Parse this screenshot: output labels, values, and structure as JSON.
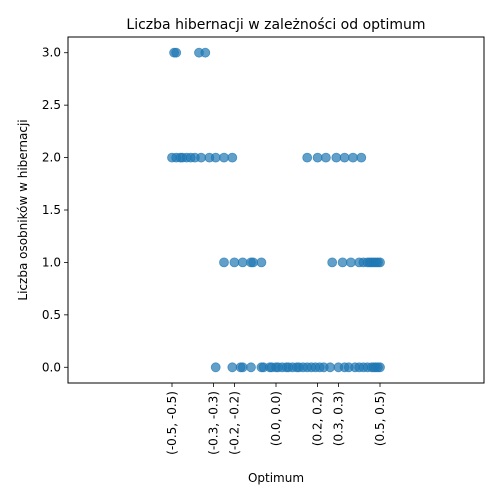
{
  "chart_data": {
    "type": "scatter",
    "title": "Liczba hibernacji w zależności od optimum",
    "xlabel": "Optimum",
    "ylabel": "Liczba osobników w hibernacji",
    "x_categories": [
      "(-0.5, -0.5)",
      "(-0.3, -0.3)",
      "(-0.2, -0.2)",
      "(0.0, 0.0)",
      "(0.2, 0.2)",
      "(0.3, 0.3)",
      "(0.5, 0.5)"
    ],
    "xlim": [
      -1.0,
      1.0
    ],
    "ylim": [
      -0.15,
      3.15
    ],
    "yticks": [
      0.0,
      0.5,
      1.0,
      1.5,
      2.0,
      2.5,
      3.0
    ],
    "ytick_labels": [
      "0.0",
      "0.5",
      "1.0",
      "1.5",
      "2.0",
      "2.5",
      "3.0"
    ],
    "xticks": [
      -0.5,
      -0.3,
      -0.2,
      0.0,
      0.2,
      0.3,
      0.5
    ],
    "grid": false,
    "point_color": "#1f77b4",
    "point_opacity": 0.7,
    "points": [
      {
        "x": -0.49,
        "y": 3
      },
      {
        "x": -0.48,
        "y": 3
      },
      {
        "x": -0.37,
        "y": 3
      },
      {
        "x": -0.34,
        "y": 3
      },
      {
        "x": -0.5,
        "y": 2
      },
      {
        "x": -0.48,
        "y": 2
      },
      {
        "x": -0.46,
        "y": 2
      },
      {
        "x": -0.45,
        "y": 2
      },
      {
        "x": -0.43,
        "y": 2
      },
      {
        "x": -0.41,
        "y": 2
      },
      {
        "x": -0.39,
        "y": 2
      },
      {
        "x": -0.36,
        "y": 2
      },
      {
        "x": -0.32,
        "y": 2
      },
      {
        "x": -0.29,
        "y": 2
      },
      {
        "x": -0.25,
        "y": 2
      },
      {
        "x": -0.21,
        "y": 2
      },
      {
        "x": 0.15,
        "y": 2
      },
      {
        "x": 0.2,
        "y": 2
      },
      {
        "x": 0.24,
        "y": 2
      },
      {
        "x": 0.29,
        "y": 2
      },
      {
        "x": 0.33,
        "y": 2
      },
      {
        "x": 0.37,
        "y": 2
      },
      {
        "x": 0.41,
        "y": 2
      },
      {
        "x": -0.25,
        "y": 1
      },
      {
        "x": -0.2,
        "y": 1
      },
      {
        "x": -0.16,
        "y": 1
      },
      {
        "x": -0.12,
        "y": 1
      },
      {
        "x": -0.11,
        "y": 1
      },
      {
        "x": -0.07,
        "y": 1
      },
      {
        "x": 0.27,
        "y": 1
      },
      {
        "x": 0.32,
        "y": 1
      },
      {
        "x": 0.36,
        "y": 1
      },
      {
        "x": 0.4,
        "y": 1
      },
      {
        "x": 0.42,
        "y": 1
      },
      {
        "x": 0.44,
        "y": 1
      },
      {
        "x": 0.45,
        "y": 1
      },
      {
        "x": 0.46,
        "y": 1
      },
      {
        "x": 0.47,
        "y": 1
      },
      {
        "x": 0.48,
        "y": 1
      },
      {
        "x": 0.49,
        "y": 1
      },
      {
        "x": 0.5,
        "y": 1
      },
      {
        "x": -0.29,
        "y": 0
      },
      {
        "x": -0.21,
        "y": 0
      },
      {
        "x": -0.17,
        "y": 0
      },
      {
        "x": -0.16,
        "y": 0
      },
      {
        "x": -0.12,
        "y": 0
      },
      {
        "x": -0.07,
        "y": 0
      },
      {
        "x": -0.06,
        "y": 0
      },
      {
        "x": -0.03,
        "y": 0
      },
      {
        "x": -0.02,
        "y": 0
      },
      {
        "x": 0.0,
        "y": 0
      },
      {
        "x": 0.01,
        "y": 0
      },
      {
        "x": 0.03,
        "y": 0
      },
      {
        "x": 0.05,
        "y": 0
      },
      {
        "x": 0.06,
        "y": 0
      },
      {
        "x": 0.08,
        "y": 0
      },
      {
        "x": 0.1,
        "y": 0
      },
      {
        "x": 0.11,
        "y": 0
      },
      {
        "x": 0.13,
        "y": 0
      },
      {
        "x": 0.15,
        "y": 0
      },
      {
        "x": 0.17,
        "y": 0
      },
      {
        "x": 0.19,
        "y": 0
      },
      {
        "x": 0.21,
        "y": 0
      },
      {
        "x": 0.23,
        "y": 0
      },
      {
        "x": 0.26,
        "y": 0
      },
      {
        "x": 0.3,
        "y": 0
      },
      {
        "x": 0.33,
        "y": 0
      },
      {
        "x": 0.35,
        "y": 0
      },
      {
        "x": 0.38,
        "y": 0
      },
      {
        "x": 0.4,
        "y": 0
      },
      {
        "x": 0.42,
        "y": 0
      },
      {
        "x": 0.44,
        "y": 0
      },
      {
        "x": 0.46,
        "y": 0
      },
      {
        "x": 0.47,
        "y": 0
      },
      {
        "x": 0.48,
        "y": 0
      },
      {
        "x": 0.49,
        "y": 0
      },
      {
        "x": 0.5,
        "y": 0
      }
    ]
  }
}
